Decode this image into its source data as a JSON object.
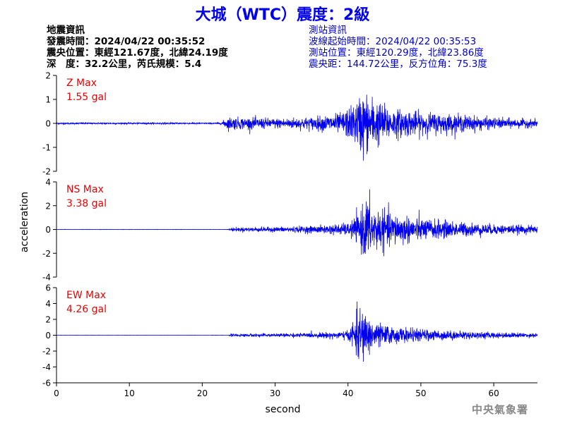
{
  "title": "大城（WTC）震度：2級",
  "quake_info": {
    "heading": "地震資訊",
    "time": "發震時間：2024/04/22 00:35:52",
    "epicenter": "震央位置：東經121.67度，北緯24.19度",
    "depth_mag": "深　度：32.2公里，芮氏規模：5.4"
  },
  "station_info": {
    "heading": "測站資訊",
    "wave_start": "波線起始時間：2024/04/22 00:35:53",
    "location": "測站位置：東經120.29度，北緯23.86度",
    "distance": "震央距：144.72公里，反方位角：75.3度"
  },
  "footer": "中央氣象署",
  "colors": {
    "title": "#0000ee",
    "trace": "#0000ee",
    "max_label": "#ee0000",
    "station_info": "#0000cc"
  },
  "chart_data": {
    "type": "line",
    "xlabel": "second",
    "ylabel": "acceleration",
    "xlim": [
      0,
      66
    ],
    "xticks": [
      0,
      10,
      20,
      30,
      40,
      50,
      60
    ],
    "grid": false,
    "panels": [
      {
        "component": "Z",
        "max_label": "Z Max",
        "max_value": "1.55 gal",
        "peak": 1.55,
        "ylim": [
          -2,
          2
        ],
        "yticks": [
          -2,
          -1,
          0,
          1,
          2
        ],
        "envelope": [
          [
            0,
            0.03
          ],
          [
            22.5,
            0.03
          ],
          [
            23.5,
            0.25
          ],
          [
            30,
            0.2
          ],
          [
            35,
            0.25
          ],
          [
            39,
            0.4
          ],
          [
            41,
            0.8
          ],
          [
            42,
            1.3
          ],
          [
            43.5,
            1.0
          ],
          [
            46,
            0.6
          ],
          [
            50,
            0.45
          ],
          [
            55,
            0.35
          ],
          [
            60,
            0.22
          ],
          [
            66,
            0.15
          ]
        ]
      },
      {
        "component": "NS",
        "max_label": "NS Max",
        "max_value": "3.38 gal",
        "peak": 3.38,
        "ylim": [
          -4,
          4
        ],
        "yticks": [
          -4,
          -2,
          0,
          2,
          4
        ],
        "envelope": [
          [
            0,
            0.01
          ],
          [
            23.5,
            0.01
          ],
          [
            24,
            0.15
          ],
          [
            30,
            0.2
          ],
          [
            36,
            0.3
          ],
          [
            40,
            0.5
          ],
          [
            41.5,
            1.2
          ],
          [
            42.5,
            2.6
          ],
          [
            43.5,
            1.8
          ],
          [
            46,
            1.3
          ],
          [
            50,
            0.9
          ],
          [
            55,
            0.6
          ],
          [
            60,
            0.4
          ],
          [
            66,
            0.3
          ]
        ]
      },
      {
        "component": "EW",
        "max_label": "EW Max",
        "max_value": "4.26 gal",
        "peak": 4.26,
        "ylim": [
          -6,
          6
        ],
        "yticks": [
          -6,
          -4,
          -2,
          0,
          2,
          4,
          6
        ],
        "envelope": [
          [
            0,
            0.01
          ],
          [
            23.5,
            0.01
          ],
          [
            24,
            0.15
          ],
          [
            30,
            0.2
          ],
          [
            36,
            0.3
          ],
          [
            40,
            0.5
          ],
          [
            41.5,
            3.2
          ],
          [
            42.5,
            2.5
          ],
          [
            44,
            1.5
          ],
          [
            46,
            1.0
          ],
          [
            50,
            0.7
          ],
          [
            55,
            0.5
          ],
          [
            60,
            0.35
          ],
          [
            66,
            0.25
          ]
        ]
      }
    ]
  }
}
